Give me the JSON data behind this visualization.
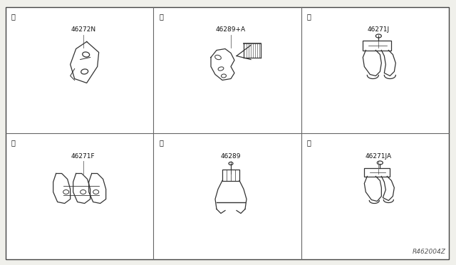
{
  "bg_color": "#f0f0eb",
  "cell_bg": "#ffffff",
  "grid_color": "#666666",
  "border_color": "#444444",
  "text_color": "#111111",
  "part_color": "#333333",
  "figure_width": 6.4,
  "figure_height": 3.72,
  "dpi": 100,
  "cells": [
    {
      "label": "A",
      "part": "46272N",
      "row": 0,
      "col": 0
    },
    {
      "label": "B",
      "part": "46289+A",
      "row": 0,
      "col": 1
    },
    {
      "label": "C",
      "part": "46271J",
      "row": 0,
      "col": 2
    },
    {
      "label": "D",
      "part": "46271F",
      "row": 1,
      "col": 0
    },
    {
      "label": "E",
      "part": "46289",
      "row": 1,
      "col": 1
    },
    {
      "label": "F",
      "part": "46271JA",
      "row": 1,
      "col": 2
    }
  ],
  "watermark": "R462004Z",
  "circle_label_fontsize": 7,
  "part_label_fontsize": 6.5,
  "watermark_fontsize": 6.5
}
